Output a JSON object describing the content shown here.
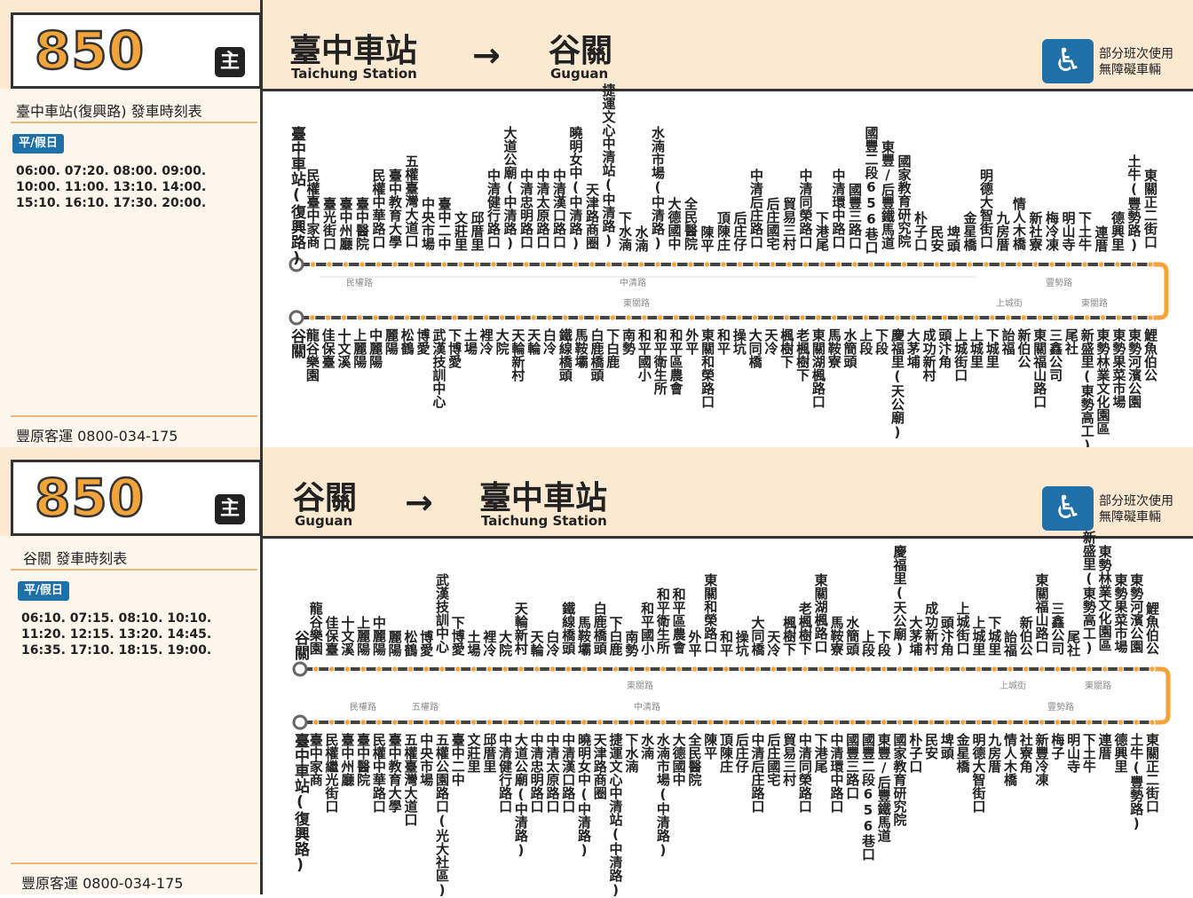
{
  "panels": [
    {
      "route_number": "850",
      "route_badge": "主",
      "from_zh": "臺中車站",
      "from_en": "Taichung Station",
      "arrow": "→",
      "to_zh": "谷關",
      "to_en": "Guguan",
      "accessibility_icon": "wheelchair-icon",
      "accessibility_glyph": "♿",
      "accessibility_line1": "部分班次使用",
      "accessibility_line2": "無障礙車輛",
      "schedule_title": "臺中車站(復興路)  發車時刻表",
      "day_type": "平/假日",
      "times": "06:00. 07:20. 08:00. 09:00. 10:00. 11:00. 13:10. 14:00. 15:10. 16:10. 17:30. 20:00.",
      "company": "豐原客運   0800-034-175",
      "top_stops": [
        "臺中車站(復興路)",
        "民權臺中家商",
        "臺光街口",
        "臺中州廳",
        "臺中醫院",
        "民權中華路口",
        "臺中教育大學",
        "五權臺灣大道口",
        "中央市場",
        "臺中二中",
        "文莊里",
        "邱厝里",
        "中清健行路口",
        "大道公廟(中清路)",
        "中清忠明路口",
        "中清太原路口",
        "中清漢口路口",
        "曉明女中(中清路)",
        "天津路商圈",
        "捷運文心中清站(中清路)",
        "下水湳",
        "水湳",
        "水湳市場(中清路)",
        "大德國中",
        "全民醫院",
        "陳平",
        "頂陳庄",
        "后庄仔",
        "中清后庄路口",
        "后庄國宅",
        "貿易三村",
        "中清同榮路口",
        "下港尾",
        "中清環中路口",
        "國豐三路口",
        "國豐二段656巷口",
        "東豐/后豐鐵馬道",
        "國家教育研究院",
        "朴子口",
        "民安",
        "埤頭",
        "金星橋",
        "明德大智街口",
        "九房厝",
        "情人木橋",
        "新社寮",
        "梅冷凍",
        "明山寺",
        "下土牛",
        "連厝",
        "德興里",
        "土牛(豐勢路)",
        "東關正二街口"
      ],
      "bottom_stops": [
        "谷關",
        "龍谷樂園",
        "佳保臺",
        "十文溪",
        "上麗陽",
        "中麗陽",
        "麗陽",
        "松鶴",
        "博愛",
        "武漢技訓中心",
        "下博愛",
        "土場",
        "裡冷",
        "大院",
        "天輪新村",
        "天輪",
        "白冷",
        "鐵線橋頭",
        "馬鞍壩",
        "白鹿橋頭",
        "下白鹿",
        "南勢",
        "和平國小",
        "和平衛生所",
        "和平區農會",
        "外平",
        "東關和榮路口",
        "和平",
        "操坑",
        "大同橋",
        "天冷",
        "楓樹下",
        "老楓樹下",
        "東關湖楓路口",
        "馬鞍寮",
        "水簡頭",
        "上段",
        "下段",
        "慶福里(天公廟)",
        "大茅埔",
        "成功新村",
        "頭汴角",
        "上城街口",
        "上城里",
        "下城里",
        "詒福",
        "新伯公",
        "東關福山路口",
        "三鑫公司",
        "尾社",
        "新盛里(東勢高工)",
        "東勢林業文化園區",
        "東勢果菜市場",
        "東勢河濱公園",
        "鯉魚伯公"
      ],
      "road_labels": {
        "minquan": "民權路",
        "zhongqing": "中清路",
        "dongguan1": "東關路",
        "shangcheng": "上城街",
        "dongguan2": "東關路",
        "fengshi": "豐勢路"
      }
    },
    {
      "route_number": "850",
      "route_badge": "主",
      "from_zh": "谷關",
      "from_en": "Guguan",
      "arrow": "→",
      "to_zh": "臺中車站",
      "to_en": "Taichung Station",
      "accessibility_icon": "wheelchair-icon",
      "accessibility_glyph": "♿",
      "accessibility_line1": "部分班次使用",
      "accessibility_line2": "無障礙車輛",
      "schedule_title": "谷關  發車時刻表",
      "day_type": "平/假日",
      "times": "06:10. 07:15. 08:10. 10:10. 11:20. 12:15. 13:20. 14:45. 16:35. 17:10. 18:15. 19:00.",
      "company": "豐原客運   0800-034-175",
      "top_stops": [
        "谷關",
        "龍谷樂園",
        "佳保臺",
        "十文溪",
        "上麗陽",
        "中麗陽",
        "麗陽",
        "松鶴",
        "博愛",
        "武漢技訓中心",
        "下博愛",
        "土場",
        "裡冷",
        "大院",
        "天輪新村",
        "天輪",
        "白冷",
        "鐵線橋頭",
        "馬鞍壩",
        "白鹿橋頭",
        "下白鹿",
        "南勢",
        "和平國小",
        "和平衛生所",
        "和平區農會",
        "外平",
        "東關和榮路口",
        "和平",
        "操坑",
        "大同橋",
        "天冷",
        "楓樹下",
        "老楓樹下",
        "東關湖楓路口",
        "馬鞍寮",
        "水簡頭",
        "上段",
        "下段",
        "慶福里(天公廟)",
        "大茅埔",
        "成功新村",
        "頭汴角",
        "上城街口",
        "上城里",
        "下城里",
        "詒福",
        "新伯公",
        "東關福山路口",
        "三鑫公司",
        "尾社",
        "新盛里(東勢高工)",
        "東勢林業文化園區",
        "東勢果菜市場",
        "東勢河濱公園",
        "鯉魚伯公"
      ],
      "bottom_stops": [
        "臺中車站(復興路)",
        "臺中家商",
        "民權繼光街口",
        "臺中州廳",
        "臺中醫院",
        "民權中華路口",
        "臺中教育大學",
        "五權臺灣大道口",
        "中央市場",
        "五權公園路口(光大社區)",
        "臺中二中",
        "文莊里",
        "邱厝里",
        "中清健行路口",
        "大道公廟(中清路)",
        "中清忠明路口",
        "中清太原路口",
        "中清漢口路口",
        "曉明女中(中清路)",
        "天津路商圈",
        "捷運文心中清站(中清路)",
        "下水湳",
        "水湳",
        "水湳市場(中清路)",
        "大德國中",
        "全民醫院",
        "陳平",
        "頂陳庄",
        "后庄仔",
        "中清后庄路口",
        "后庄國宅",
        "貿易三村",
        "中清同榮路口",
        "下港尾",
        "中清環中路口",
        "國豐三路口",
        "國豐二段656巷口",
        "東豐/后豐鐵馬道",
        "國家教育研究院",
        "朴子口",
        "民安",
        "埤頭",
        "金星橋",
        "明德大智街口",
        "九房厝",
        "情人木橋",
        "社寮角",
        "新豐冷凍",
        "梅子",
        "明山寺",
        "下土牛",
        "連厝",
        "德興里",
        "土牛(豐勢路)",
        "東關正二街口"
      ],
      "road_labels": {
        "dongguan1": "東關路",
        "shangcheng": "上城街",
        "dongguan2": "東關路",
        "minquan": "民權路",
        "wuquan": "五權路",
        "zhongqing": "中清路",
        "fengshi": "豐勢路"
      }
    }
  ]
}
